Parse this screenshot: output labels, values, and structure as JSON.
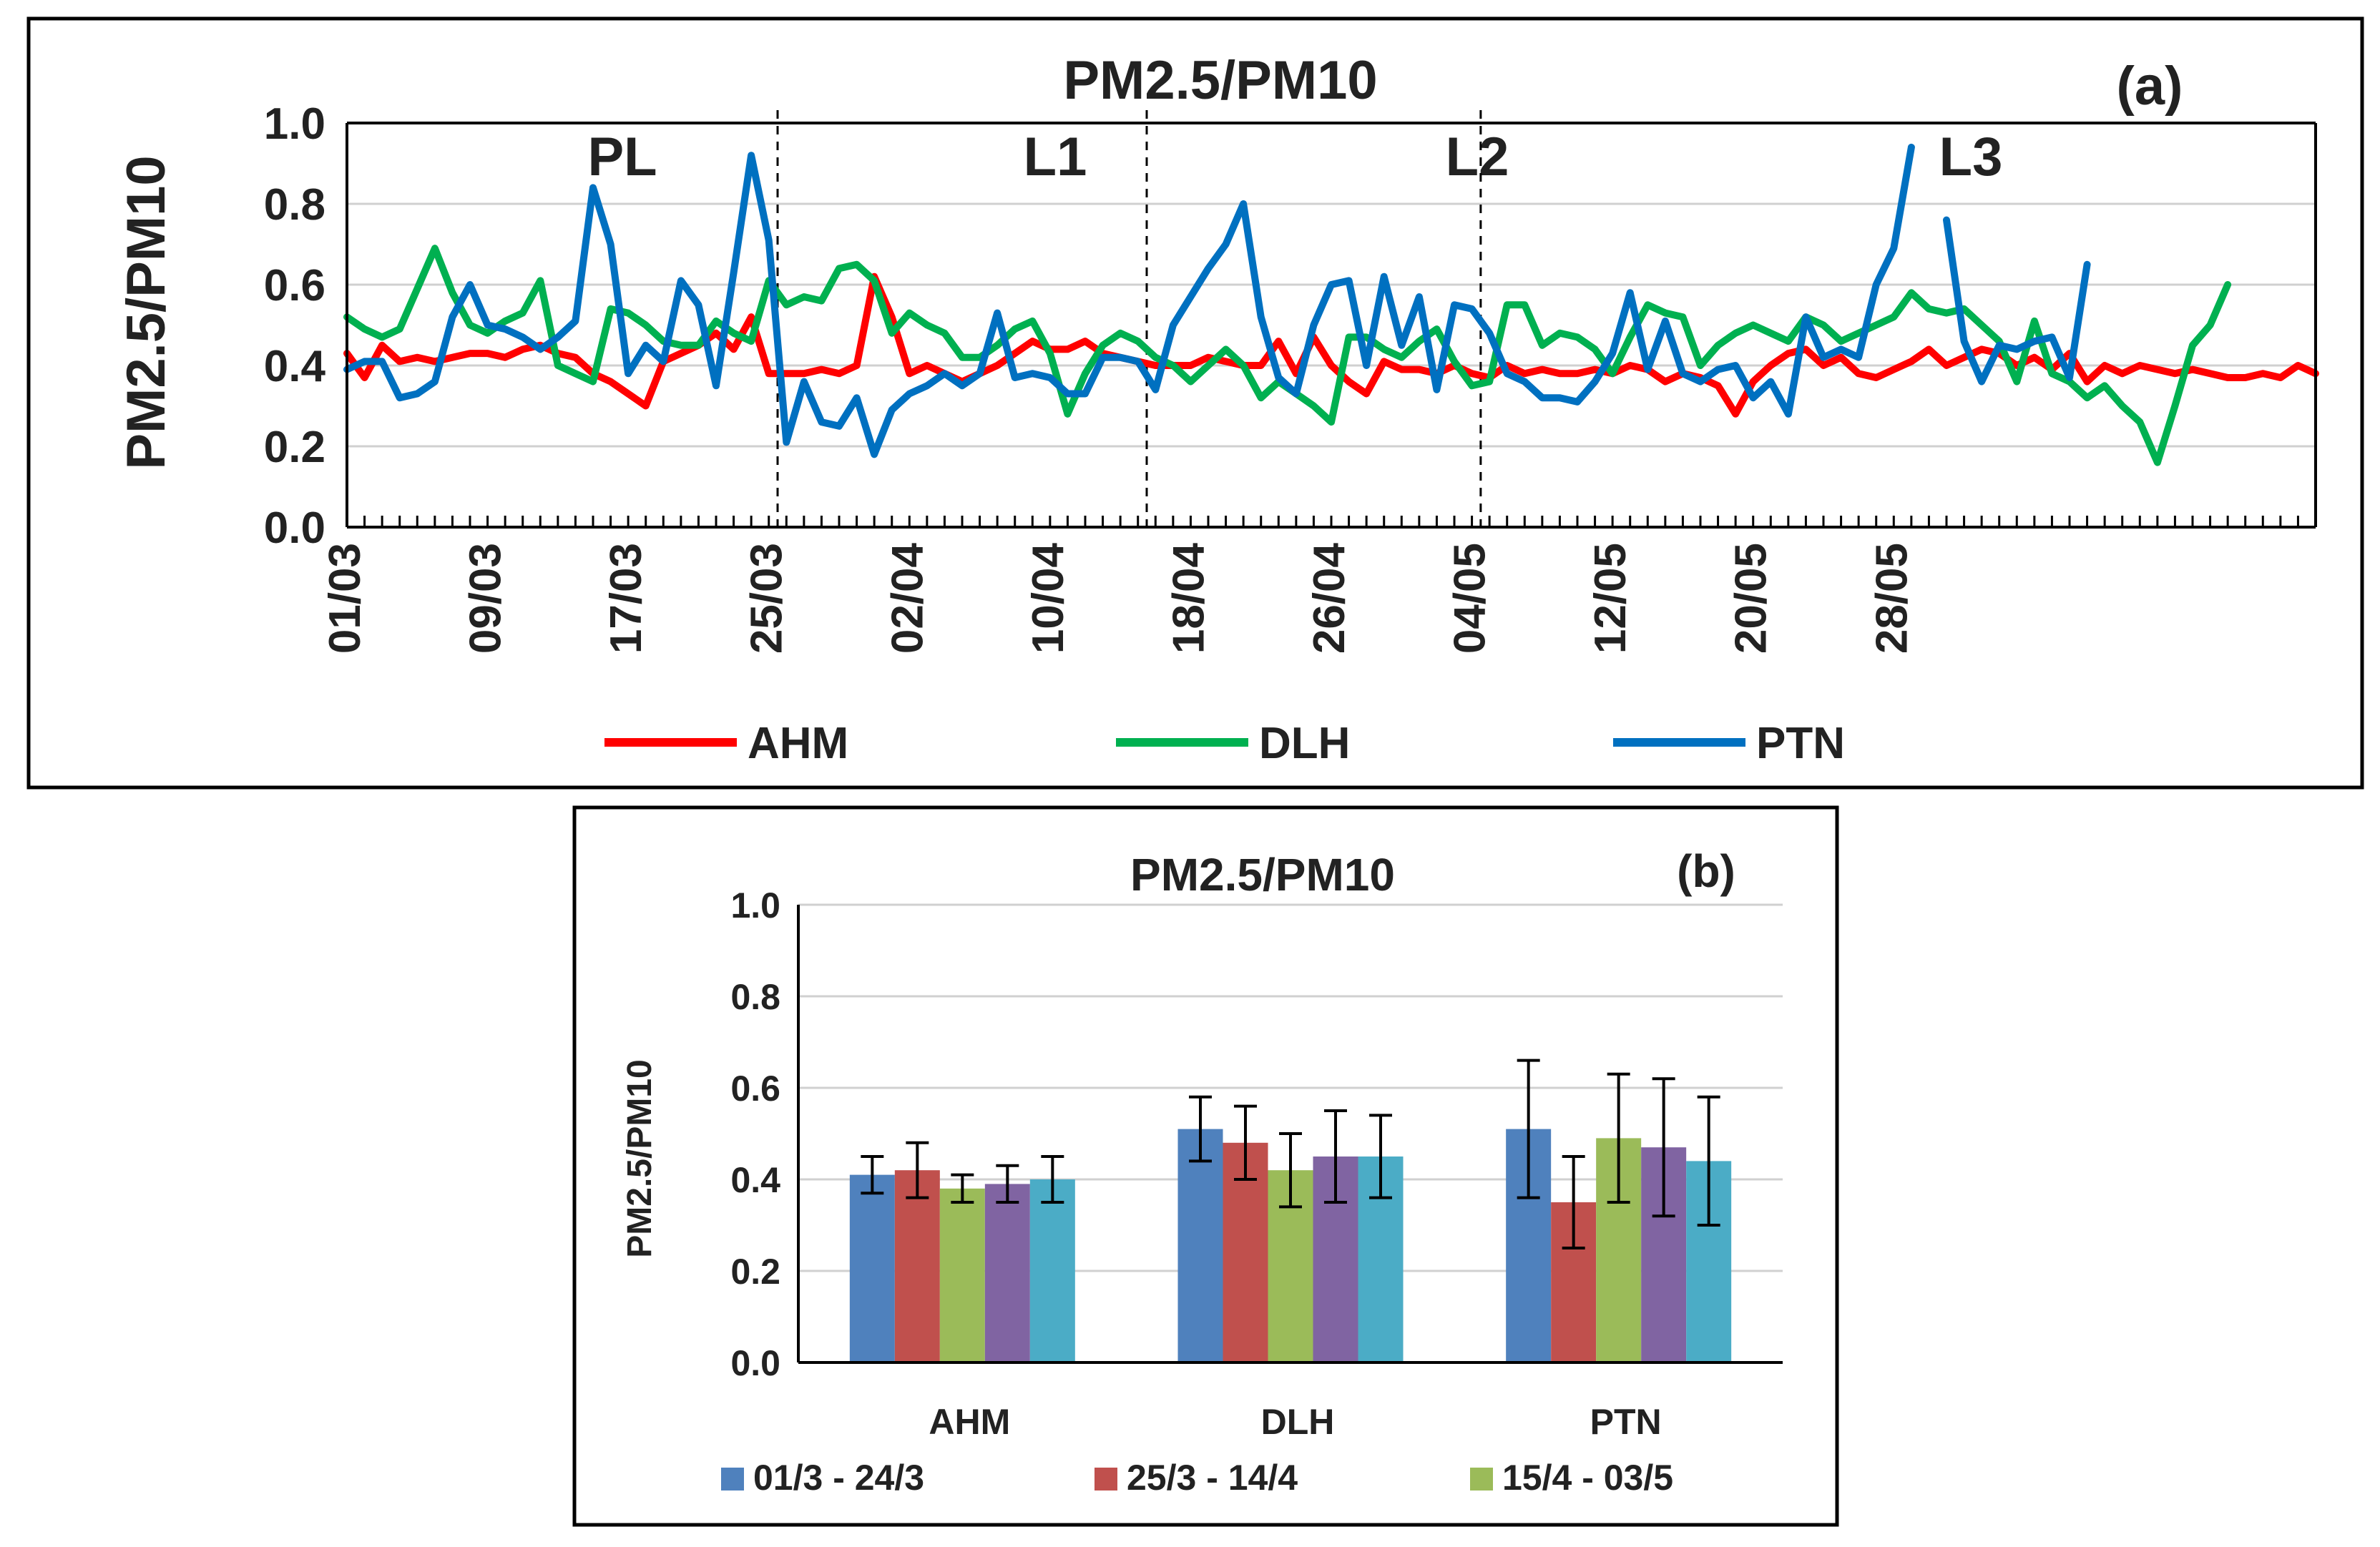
{
  "chart_data": [
    {
      "id": "a",
      "type": "line",
      "title": "PM2.5/PM10",
      "panel_label": "(a)",
      "ylabel": "PM2.5/PM10",
      "xlabel": "",
      "ylim": [
        0,
        1.0
      ],
      "yticks": [
        "0.0",
        "0.2",
        "0.4",
        "0.6",
        "0.8",
        "1.0"
      ],
      "xtick_labels": [
        "01/03",
        "09/03",
        "17/03",
        "25/03",
        "02/04",
        "10/04",
        "18/04",
        "26/04",
        "04/05",
        "12/05",
        "20/05",
        "28/05"
      ],
      "grid": true,
      "legend_position": "bottom",
      "phases": [
        "PL",
        "L1",
        "L2",
        "L3"
      ],
      "series": [
        {
          "name": "AHM",
          "color": "#ff0000",
          "values": [
            0.43,
            0.37,
            0.45,
            0.41,
            0.42,
            0.41,
            0.42,
            0.43,
            0.43,
            0.42,
            0.44,
            0.45,
            0.43,
            0.42,
            0.38,
            0.36,
            0.33,
            0.3,
            0.41,
            0.43,
            0.45,
            0.48,
            0.44,
            0.52,
            0.38,
            0.38,
            0.38,
            0.39,
            0.38,
            0.4,
            0.62,
            0.52,
            0.38,
            0.4,
            0.38,
            0.36,
            0.38,
            0.4,
            0.43,
            0.46,
            0.44,
            0.44,
            0.46,
            0.43,
            0.42,
            0.41,
            0.4,
            0.4,
            0.4,
            0.42,
            0.41,
            0.4,
            0.4,
            0.46,
            0.38,
            0.47,
            0.4,
            0.36,
            0.33,
            0.41,
            0.39,
            0.39,
            0.38,
            0.4,
            0.38,
            0.37,
            0.4,
            0.38,
            0.39,
            0.38,
            0.38,
            0.39,
            0.38,
            0.4,
            0.39,
            0.36,
            0.38,
            0.37,
            0.35,
            0.28,
            0.36,
            0.4,
            0.43,
            0.44,
            0.4,
            0.42,
            0.38,
            0.37,
            0.39,
            0.41,
            0.44,
            0.4,
            0.42,
            0.44,
            0.43,
            0.4,
            0.42,
            0.39,
            0.43,
            0.36,
            0.4,
            0.38,
            0.4,
            0.39,
            0.38,
            0.39,
            0.38,
            0.37,
            0.37,
            0.38,
            0.37,
            0.4,
            0.38
          ]
        },
        {
          "name": "DLH",
          "color": "#00b050",
          "values": [
            0.52,
            0.49,
            0.47,
            0.49,
            0.59,
            0.69,
            0.58,
            0.5,
            0.48,
            0.51,
            0.53,
            0.61,
            0.4,
            0.38,
            0.36,
            0.54,
            0.53,
            0.5,
            0.46,
            0.45,
            0.45,
            0.51,
            0.48,
            0.46,
            0.61,
            0.55,
            0.57,
            0.56,
            0.64,
            0.65,
            0.61,
            0.48,
            0.53,
            0.5,
            0.48,
            0.42,
            0.42,
            0.45,
            0.49,
            0.51,
            0.43,
            0.28,
            0.38,
            0.45,
            0.48,
            0.46,
            0.42,
            0.4,
            0.36,
            0.4,
            0.44,
            0.4,
            0.32,
            0.36,
            0.33,
            0.3,
            0.26,
            0.47,
            0.47,
            0.44,
            0.42,
            0.46,
            0.49,
            0.41,
            0.35,
            0.36,
            0.55,
            0.55,
            0.45,
            0.48,
            0.47,
            0.44,
            0.38,
            0.47,
            0.55,
            0.53,
            0.52,
            0.4,
            0.45,
            0.48,
            0.5,
            0.48,
            0.46,
            0.52,
            0.5,
            0.46,
            0.48,
            0.5,
            0.52,
            0.58,
            0.54,
            0.53,
            0.54,
            0.5,
            0.46,
            0.36,
            0.51,
            0.38,
            0.36,
            0.32,
            0.35,
            0.3,
            0.26,
            0.16,
            0.3,
            0.45,
            0.5,
            0.6
          ]
        },
        {
          "name": "PTN",
          "color": "#0070c0",
          "values": [
            0.39,
            0.41,
            0.41,
            0.32,
            0.33,
            0.36,
            0.52,
            0.6,
            0.5,
            0.49,
            0.47,
            0.44,
            0.47,
            0.51,
            0.84,
            0.7,
            0.38,
            0.45,
            0.41,
            0.61,
            0.55,
            0.35,
            0.63,
            0.92,
            0.71,
            0.21,
            0.36,
            0.26,
            0.25,
            0.32,
            0.18,
            0.29,
            0.33,
            0.35,
            0.38,
            0.35,
            0.38,
            0.53,
            0.37,
            0.38,
            0.37,
            0.33,
            0.33,
            0.42,
            0.42,
            0.41,
            0.34,
            0.5,
            0.57,
            0.64,
            0.7,
            0.8,
            0.52,
            0.37,
            0.33,
            0.5,
            0.6,
            0.61,
            0.4,
            0.62,
            0.45,
            0.57,
            0.34,
            0.55,
            0.54,
            0.48,
            0.38,
            0.36,
            0.32,
            0.32,
            0.31,
            0.36,
            0.43,
            0.58,
            0.39,
            0.51,
            0.38,
            0.36,
            0.39,
            0.4,
            0.32,
            0.36,
            0.28,
            0.52,
            0.42,
            0.44,
            0.42,
            0.6,
            0.69,
            0.94,
            null,
            0.76,
            0.46,
            0.36,
            0.45,
            0.44,
            0.46,
            0.47,
            0.37,
            0.65
          ]
        }
      ]
    },
    {
      "id": "b",
      "type": "bar",
      "title": "PM2.5/PM10",
      "panel_label": "(b)",
      "ylabel": "PM2.5/PM10",
      "xlabel": "",
      "ylim": [
        0,
        1.0
      ],
      "yticks": [
        "0.0",
        "0.2",
        "0.4",
        "0.6",
        "0.8",
        "1.0"
      ],
      "categories": [
        "AHM",
        "DLH",
        "PTN"
      ],
      "grid": true,
      "legend_position": "bottom",
      "series": [
        {
          "name": "01/3 - 24/3",
          "color": "#4f81bd",
          "values": [
            0.41,
            0.51,
            0.51
          ],
          "errors": [
            0.04,
            0.07,
            0.15
          ]
        },
        {
          "name": "25/3 - 14/4",
          "color": "#c0504d",
          "values": [
            0.42,
            0.48,
            0.35
          ],
          "errors": [
            0.06,
            0.08,
            0.1
          ]
        },
        {
          "name": "15/4 - 03/5",
          "color": "#9bbb59",
          "values": [
            0.38,
            0.42,
            0.49
          ],
          "errors": [
            0.03,
            0.08,
            0.14
          ]
        },
        {
          "name": "",
          "color": "#8064a2",
          "values": [
            0.39,
            0.45,
            0.47
          ],
          "errors": [
            0.04,
            0.1,
            0.15
          ]
        },
        {
          "name": "",
          "color": "#4bacc6",
          "values": [
            0.4,
            0.45,
            0.44
          ],
          "errors": [
            0.05,
            0.09,
            0.14
          ]
        }
      ]
    }
  ]
}
